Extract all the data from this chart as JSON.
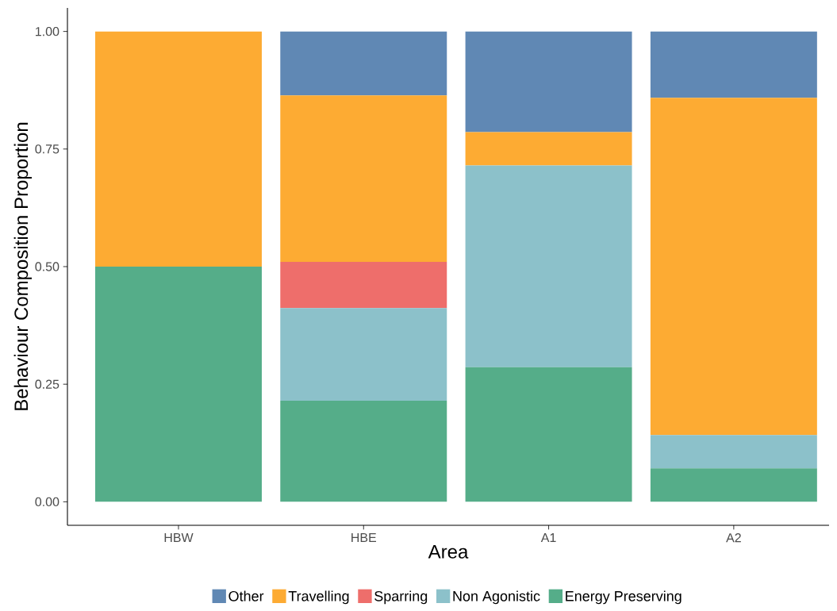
{
  "chart_data": {
    "type": "bar",
    "stacked": true,
    "xlabel": "Area",
    "ylabel": "Behaviour Composition Proportion",
    "categories": [
      "HBW",
      "HBE",
      "A1",
      "A2"
    ],
    "series": [
      {
        "name": "Energy Preserving",
        "color": "#55ad89",
        "values": [
          0.5,
          0.215,
          0.286,
          0.071
        ]
      },
      {
        "name": "Non Agonistic",
        "color": "#8cc1ca",
        "values": [
          0,
          0.197,
          0.429,
          0.071
        ]
      },
      {
        "name": "Sparring",
        "color": "#ee6e6b",
        "values": [
          0,
          0.098,
          0,
          0
        ]
      },
      {
        "name": "Travelling",
        "color": "#fdab33",
        "values": [
          0.5,
          0.354,
          0.071,
          0.717
        ]
      },
      {
        "name": "Other",
        "color": "#6088b4",
        "values": [
          0,
          0.136,
          0.214,
          0.141
        ]
      }
    ],
    "ylim": [
      -0.05,
      1.05
    ],
    "yticks": [
      {
        "value": 0,
        "label": "0.00"
      },
      {
        "value": 0.25,
        "label": "0.25"
      },
      {
        "value": 0.5,
        "label": "0.50"
      },
      {
        "value": 0.75,
        "label": "0.75"
      },
      {
        "value": 1,
        "label": "1.00"
      }
    ],
    "grid": false,
    "legend": "bottom"
  }
}
